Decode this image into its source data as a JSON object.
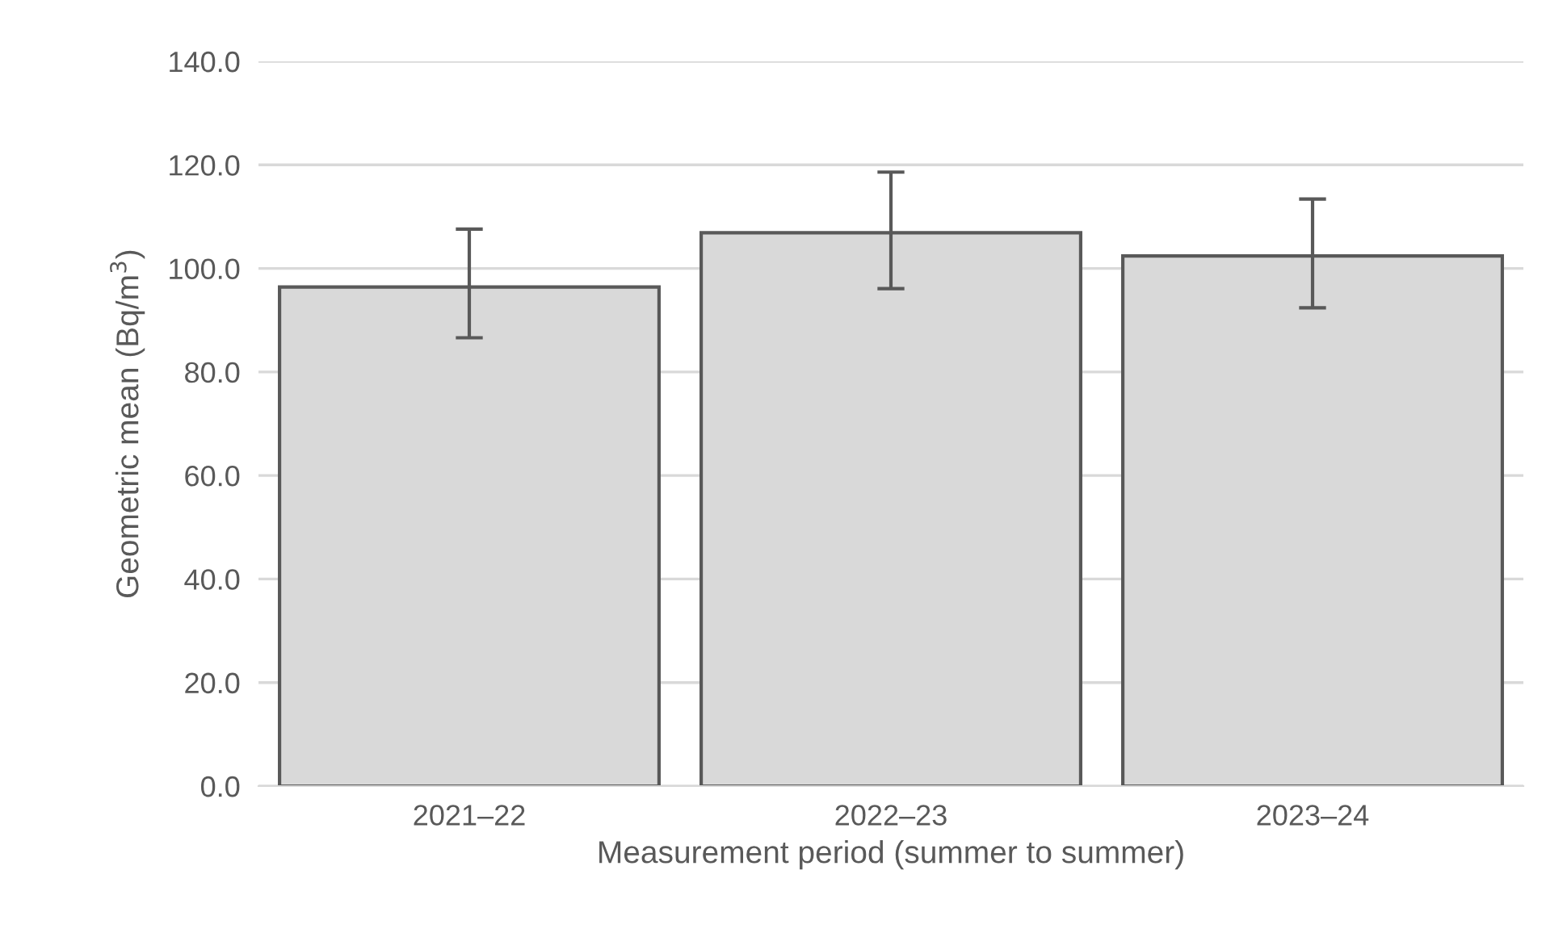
{
  "chart_data": {
    "type": "bar",
    "xlabel": "Measurement period (summer to summer)",
    "ylabel": "Geometric mean (Bq/m$^{3}$)",
    "categories": [
      "2021–22",
      "2022–23",
      "2023–24"
    ],
    "values": [
      96.4,
      106.9,
      102.4
    ],
    "errors": [
      [
        86.6,
        107.6
      ],
      [
        96.1,
        118.6
      ],
      [
        92.4,
        113.4
      ]
    ],
    "color": "#d9d9d9",
    "ylim": [
      0,
      140
    ],
    "yticks": [
      {
        "value": 0,
        "label": "0.0"
      },
      {
        "value": 20,
        "label": "20.0"
      },
      {
        "value": 40,
        "label": "40.0"
      },
      {
        "value": 60,
        "label": "60.0"
      },
      {
        "value": 80,
        "label": "80.0"
      },
      {
        "value": 100,
        "label": "100.0"
      },
      {
        "value": 120,
        "label": "120.0"
      },
      {
        "value": 140,
        "label": "140.0"
      }
    ],
    "grid": "y"
  }
}
